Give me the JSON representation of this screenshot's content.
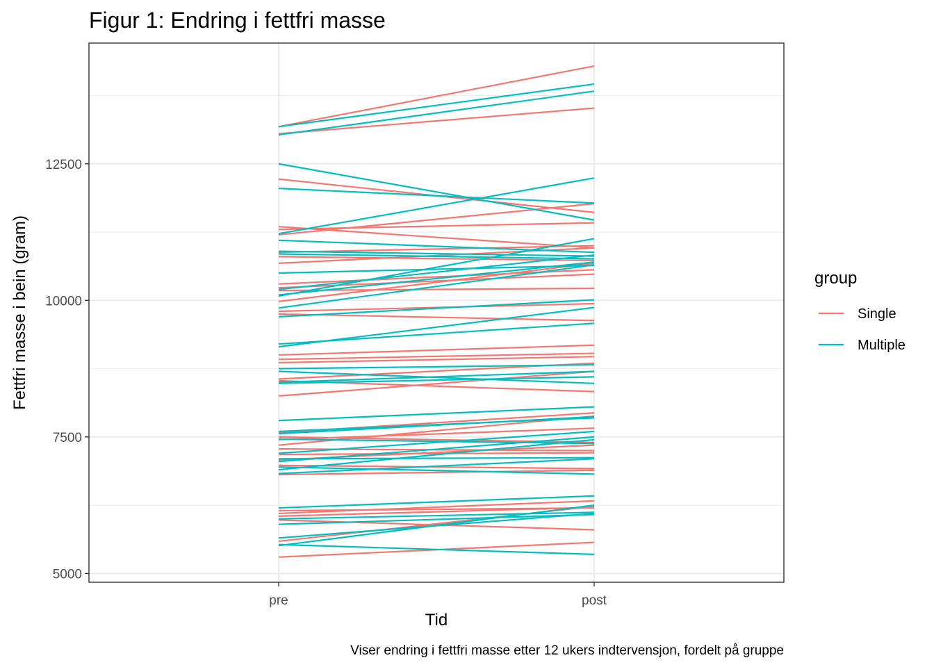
{
  "chart_data": {
    "type": "line",
    "title": "Figur 1: Endring i fettfri masse",
    "xlabel": "Tid",
    "ylabel": "Fettfri masse i bein (gram)",
    "caption": "Viser endring  i fettfri masse etter 12 ukers indtervensjon, fordelt på gruppe",
    "categories": [
      "pre",
      "post"
    ],
    "ylim": [
      4840,
      14710
    ],
    "yticks": [
      "5000",
      "7500",
      "10000",
      "12500"
    ],
    "ytick_values": [
      5000,
      7500,
      10000,
      12500
    ],
    "grid": true,
    "legend": {
      "title": "group",
      "placement": "right",
      "entries": [
        {
          "label": "Single",
          "color": "#F8766D"
        },
        {
          "label": "Multiple",
          "color": "#00BFC4"
        }
      ]
    },
    "series": [
      {
        "group": "Single",
        "color": "#F8766D",
        "values": [
          [
            13180,
            14290
          ],
          [
            13050,
            13520
          ],
          [
            12220,
            11610
          ],
          [
            11350,
            10960
          ],
          [
            11300,
            11420
          ],
          [
            11200,
            11770
          ],
          [
            10880,
            11000
          ],
          [
            10800,
            10730
          ],
          [
            10680,
            10960
          ],
          [
            10300,
            10560
          ],
          [
            10230,
            10480
          ],
          [
            10180,
            10220
          ],
          [
            9980,
            10680
          ],
          [
            9800,
            9940
          ],
          [
            9750,
            9630
          ],
          [
            9000,
            9180
          ],
          [
            8920,
            9030
          ],
          [
            8860,
            8970
          ],
          [
            8560,
            8850
          ],
          [
            8530,
            8330
          ],
          [
            8250,
            8700
          ],
          [
            7580,
            7940
          ],
          [
            7500,
            7400
          ],
          [
            7450,
            7660
          ],
          [
            7350,
            7880
          ],
          [
            7280,
            7250
          ],
          [
            7180,
            7210
          ],
          [
            7080,
            7350
          ],
          [
            6980,
            6920
          ],
          [
            6810,
            6890
          ],
          [
            6150,
            6200
          ],
          [
            6100,
            6330
          ],
          [
            6050,
            6210
          ],
          [
            5590,
            6230
          ],
          [
            5980,
            5800
          ],
          [
            5300,
            5570
          ]
        ]
      },
      {
        "group": "Multiple",
        "color": "#00BFC4",
        "values": [
          [
            13180,
            13960
          ],
          [
            13030,
            13830
          ],
          [
            12500,
            11470
          ],
          [
            12050,
            11780
          ],
          [
            11220,
            12240
          ],
          [
            11100,
            10880
          ],
          [
            10900,
            10810
          ],
          [
            10850,
            10760
          ],
          [
            10500,
            10640
          ],
          [
            10200,
            10830
          ],
          [
            10100,
            10700
          ],
          [
            10080,
            11130
          ],
          [
            9860,
            10650
          ],
          [
            9700,
            10010
          ],
          [
            9200,
            9580
          ],
          [
            9150,
            9870
          ],
          [
            8750,
            8820
          ],
          [
            8700,
            8480
          ],
          [
            8500,
            8700
          ],
          [
            8480,
            8600
          ],
          [
            7800,
            8050
          ],
          [
            7600,
            7850
          ],
          [
            7560,
            7870
          ],
          [
            7460,
            7380
          ],
          [
            7200,
            7600
          ],
          [
            7100,
            7120
          ],
          [
            7050,
            7500
          ],
          [
            6950,
            6820
          ],
          [
            6900,
            7450
          ],
          [
            6830,
            7100
          ],
          [
            6200,
            6420
          ],
          [
            6000,
            6120
          ],
          [
            5900,
            6080
          ],
          [
            5650,
            6100
          ],
          [
            5530,
            5350
          ],
          [
            5510,
            6250
          ]
        ]
      }
    ]
  }
}
